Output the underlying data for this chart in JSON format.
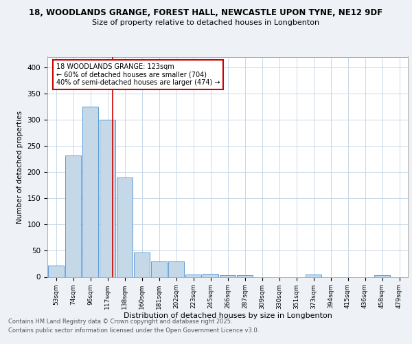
{
  "title_line1": "18, WOODLANDS GRANGE, FOREST HALL, NEWCASTLE UPON TYNE, NE12 9DF",
  "title_line2": "Size of property relative to detached houses in Longbenton",
  "xlabel": "Distribution of detached houses by size in Longbenton",
  "ylabel": "Number of detached properties",
  "categories": [
    "53sqm",
    "74sqm",
    "96sqm",
    "117sqm",
    "138sqm",
    "160sqm",
    "181sqm",
    "202sqm",
    "223sqm",
    "245sqm",
    "266sqm",
    "287sqm",
    "309sqm",
    "330sqm",
    "351sqm",
    "373sqm",
    "394sqm",
    "415sqm",
    "436sqm",
    "458sqm",
    "479sqm"
  ],
  "values": [
    22,
    232,
    325,
    300,
    190,
    46,
    29,
    29,
    5,
    6,
    3,
    3,
    0,
    0,
    0,
    4,
    0,
    0,
    0,
    3,
    0
  ],
  "bar_color": "#c5d8e8",
  "bar_edge_color": "#5b9bd5",
  "vline_color": "#cc0000",
  "annotation_text": "18 WOODLANDS GRANGE: 123sqm\n← 60% of detached houses are smaller (704)\n40% of semi-detached houses are larger (474) →",
  "annotation_box_color": "#ffffff",
  "annotation_box_edge": "#cc0000",
  "ylim": [
    0,
    420
  ],
  "yticks": [
    0,
    50,
    100,
    150,
    200,
    250,
    300,
    350,
    400
  ],
  "footer_line1": "Contains HM Land Registry data © Crown copyright and database right 2025.",
  "footer_line2": "Contains public sector information licensed under the Open Government Licence v3.0.",
  "bg_color": "#eef2f7",
  "plot_bg_color": "#ffffff",
  "grid_color": "#c8d8e8"
}
